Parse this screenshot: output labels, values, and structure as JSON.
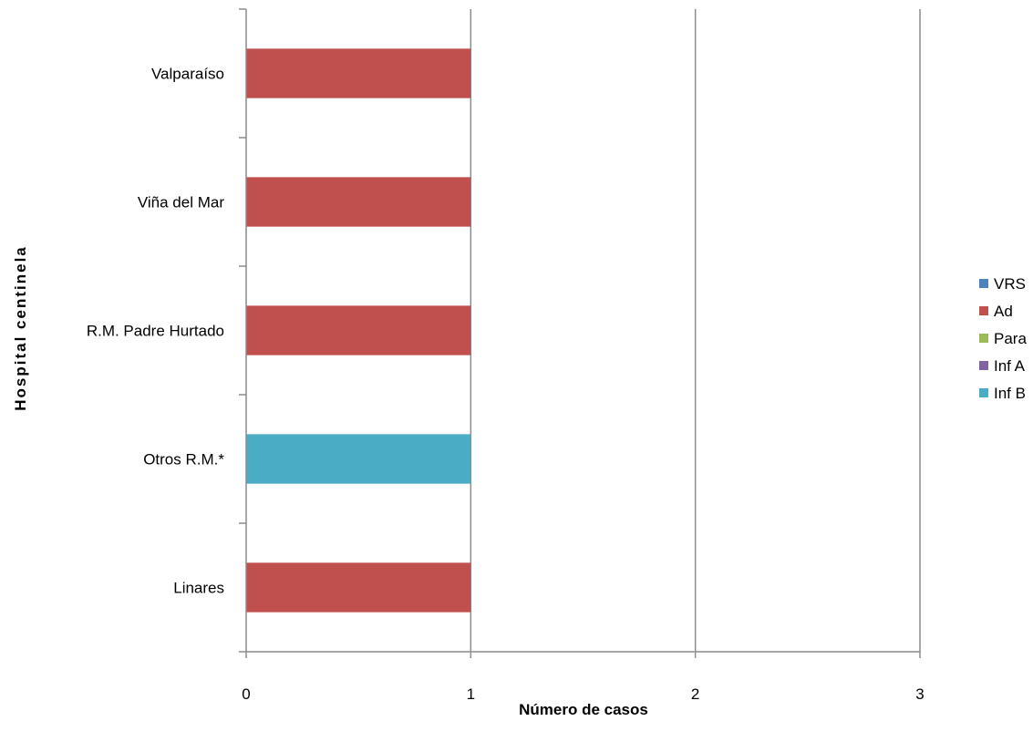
{
  "chart_data": {
    "type": "bar",
    "orientation": "horizontal",
    "stacked": true,
    "categories": [
      "Valparaíso",
      "Viña del Mar",
      "R.M. Padre Hurtado",
      "Otros R.M.*",
      "Linares"
    ],
    "series": [
      {
        "name": "VRS",
        "color": "#4F81BD",
        "values": [
          0,
          0,
          0,
          0,
          0
        ]
      },
      {
        "name": "Ad",
        "color": "#C0504D",
        "values": [
          1,
          1,
          1,
          0,
          1
        ]
      },
      {
        "name": "Para",
        "color": "#9BBB59",
        "values": [
          0,
          0,
          0,
          0,
          0
        ]
      },
      {
        "name": "Inf A",
        "color": "#8064A2",
        "values": [
          0,
          0,
          0,
          0,
          0
        ]
      },
      {
        "name": "Inf B",
        "color": "#4BACC6",
        "values": [
          0,
          0,
          0,
          1,
          0
        ]
      }
    ],
    "xlabel": "Número de casos",
    "ylabel": "Hospital centinela",
    "xlim": [
      0,
      3
    ],
    "xticks": [
      "0",
      "1",
      "2",
      "3"
    ],
    "grid": true,
    "legend_position": "right"
  }
}
